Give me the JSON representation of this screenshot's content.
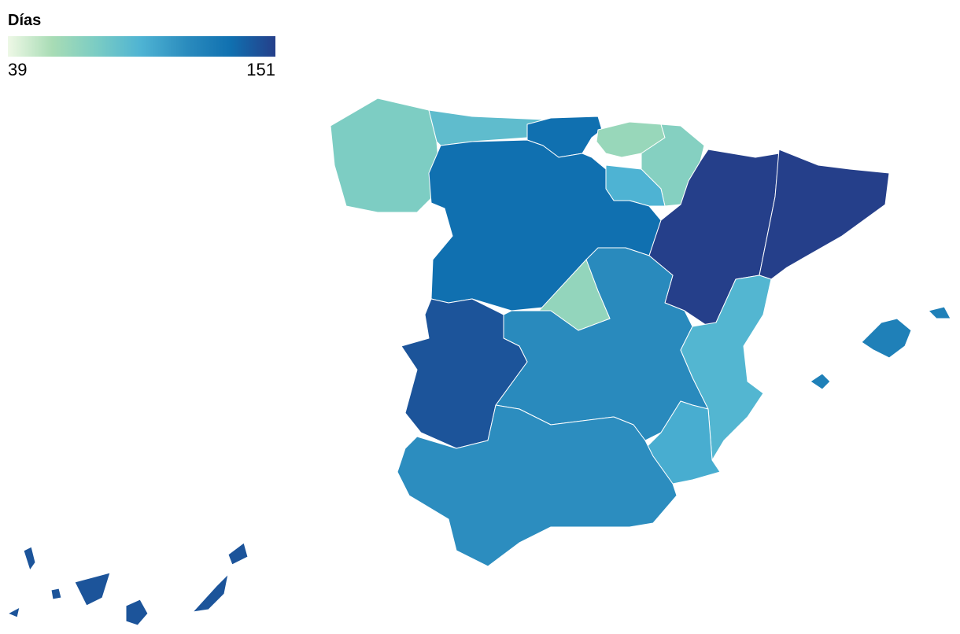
{
  "legend": {
    "title": "Días",
    "min": 39,
    "max": 151,
    "colors": [
      "#eef8e6",
      "#a8dcb5",
      "#7accc4",
      "#4eb3d3",
      "#2b8cbe",
      "#1070b0",
      "#253f8a"
    ]
  },
  "regions": [
    {
      "value": 75
    },
    {
      "value": 88
    },
    {
      "value": 132
    },
    {
      "value": 64
    },
    {
      "value": 72
    },
    {
      "value": 95
    },
    {
      "value": 132
    },
    {
      "value": 151
    },
    {
      "value": 151
    },
    {
      "value": 66
    },
    {
      "value": 143
    },
    {
      "value": 115
    },
    {
      "value": 93
    },
    {
      "value": 98
    },
    {
      "value": 113
    },
    {
      "value": 122
    },
    {
      "value": 143
    }
  ]
}
